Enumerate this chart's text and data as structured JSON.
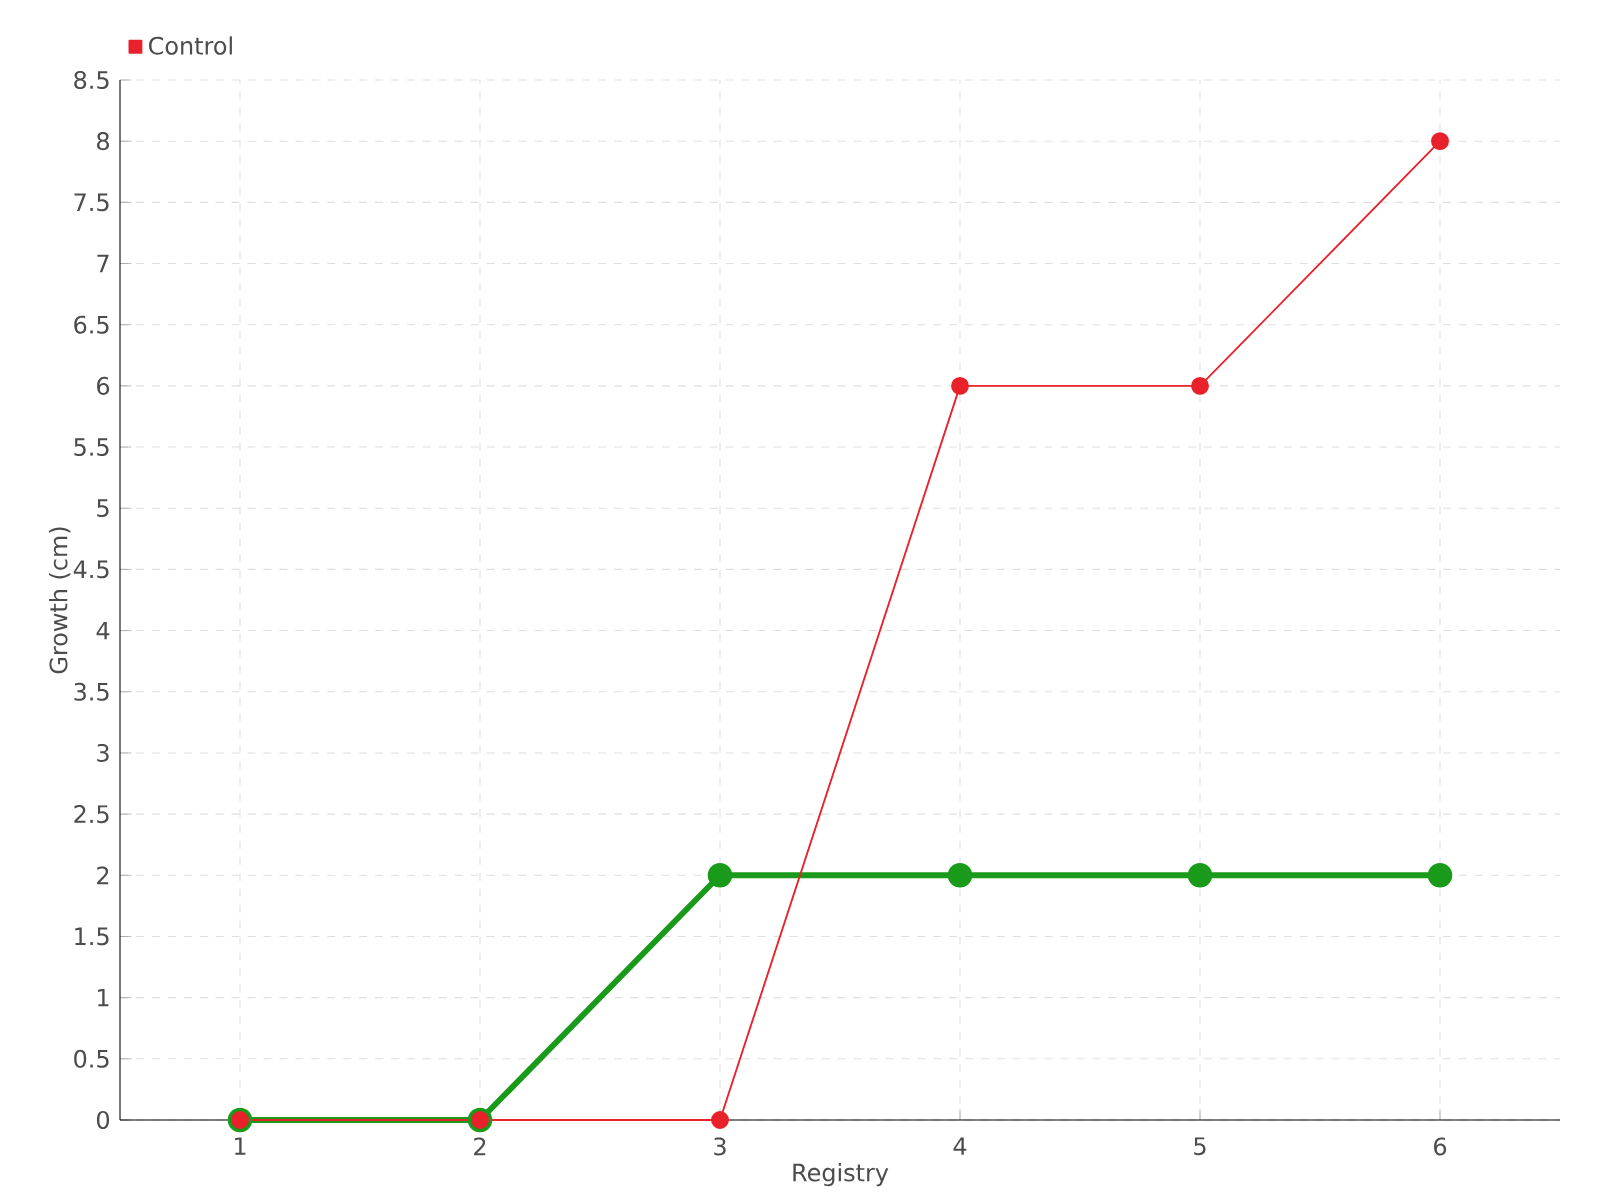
{
  "chart_data": {
    "type": "line",
    "xlabel": "Registry",
    "ylabel": "Growth (cm)",
    "x": [
      1,
      2,
      3,
      4,
      5,
      6
    ],
    "series": [
      {
        "color": "#1a9a1a",
        "values": [
          0,
          0,
          2,
          2,
          2,
          2
        ]
      },
      {
        "name": "Control",
        "color": "#e8212a",
        "values": [
          0,
          0,
          0,
          6,
          6,
          8
        ]
      }
    ],
    "xlim": [
      0.5,
      6.5
    ],
    "xticks": [
      1,
      2,
      3,
      4,
      5,
      6
    ],
    "ylim": [
      0,
      8.5
    ],
    "yticks": [
      0,
      0.5,
      1,
      1.5,
      2,
      2.5,
      3,
      3.5,
      4,
      4.5,
      5,
      5.5,
      6,
      6.5,
      7,
      7.5,
      8,
      8.5
    ],
    "grid": true,
    "legend": "top left",
    "marker": "circle",
    "line_style": "solid"
  }
}
